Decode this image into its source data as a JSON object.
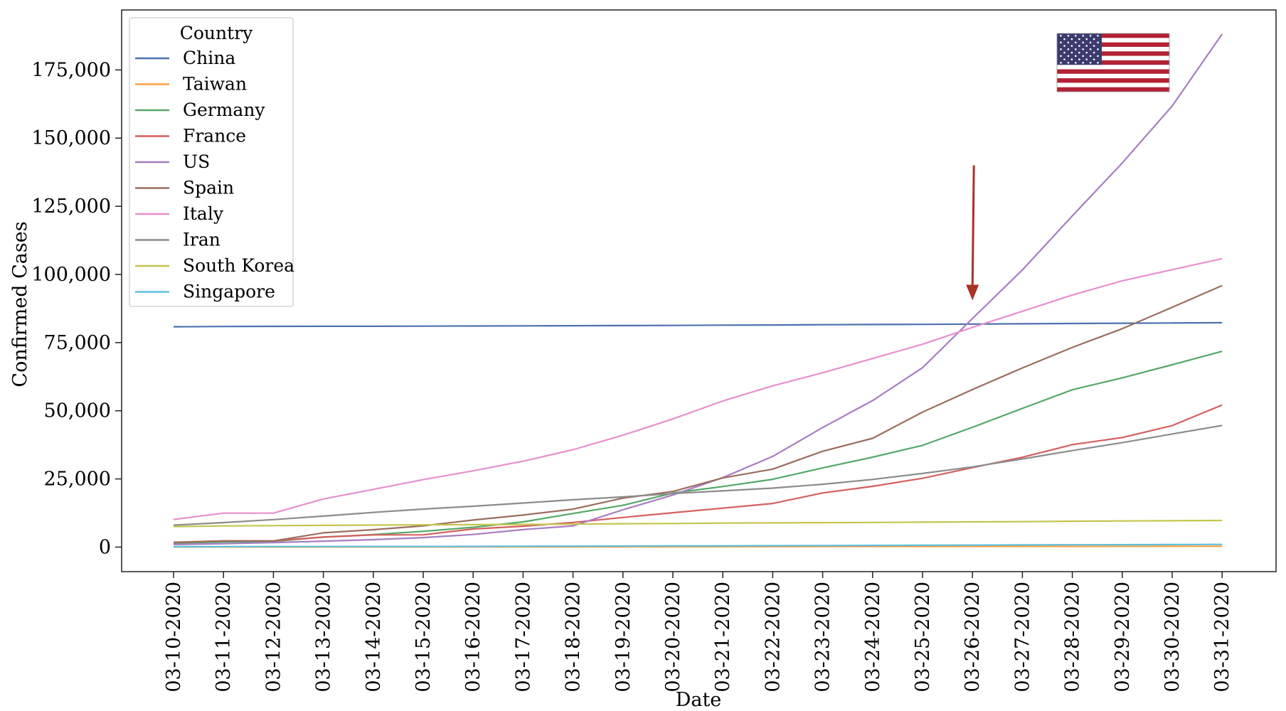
{
  "chart_data": {
    "type": "line",
    "title": "",
    "xlabel": "Date",
    "ylabel": "Confirmed Cases",
    "ylim": [
      -9000,
      197000
    ],
    "yticks": [
      0,
      25000,
      50000,
      75000,
      100000,
      125000,
      150000,
      175000
    ],
    "ytick_labels": [
      "0",
      "25,000",
      "50,000",
      "75,000",
      "100,000",
      "125,000",
      "150,000",
      "175,000"
    ],
    "grid": false,
    "legend": {
      "title": "Country",
      "placement": "top-left"
    },
    "x": [
      "03-10-2020",
      "03-11-2020",
      "03-12-2020",
      "03-13-2020",
      "03-14-2020",
      "03-15-2020",
      "03-16-2020",
      "03-17-2020",
      "03-18-2020",
      "03-19-2020",
      "03-20-2020",
      "03-21-2020",
      "03-22-2020",
      "03-23-2020",
      "03-24-2020",
      "03-25-2020",
      "03-26-2020",
      "03-27-2020",
      "03-28-2020",
      "03-29-2020",
      "03-30-2020",
      "03-31-2020"
    ],
    "series": [
      {
        "name": "China",
        "color": "#4c72b0",
        "values": [
          80800,
          80900,
          80950,
          80980,
          81000,
          81050,
          81100,
          81150,
          81200,
          81250,
          81300,
          81400,
          81450,
          81550,
          81650,
          81700,
          81800,
          81900,
          82000,
          82100,
          82200,
          82300
        ]
      },
      {
        "name": "Taiwan",
        "color": "#ff9f40",
        "values": [
          47,
          48,
          49,
          50,
          53,
          59,
          67,
          77,
          100,
          108,
          135,
          153,
          169,
          195,
          215,
          235,
          252,
          267,
          283,
          298,
          306,
          322
        ]
      },
      {
        "name": "Germany",
        "color": "#55a868",
        "values": [
          1457,
          1908,
          2078,
          3675,
          4585,
          5795,
          7272,
          9257,
          12327,
          15320,
          19848,
          22213,
          24873,
          29056,
          32986,
          37323,
          43938,
          50871,
          57695,
          62095,
          66885,
          71808
        ]
      },
      {
        "name": "France",
        "color": "#d65f5f",
        "values": [
          1784,
          2284,
          2281,
          3661,
          4469,
          4499,
          6633,
          7652,
          9043,
          10871,
          12612,
          14282,
          16018,
          19856,
          22304,
          25233,
          29155,
          32964,
          37575,
          40174,
          44550,
          52128
        ]
      },
      {
        "name": "US",
        "color": "#a77dc2",
        "values": [
          959,
          1281,
          1663,
          2179,
          2726,
          3499,
          4632,
          6421,
          7786,
          13680,
          19101,
          25493,
          33276,
          43847,
          53740,
          65778,
          83836,
          101657,
          121478,
          140886,
          161807,
          188172
        ]
      },
      {
        "name": "Spain",
        "color": "#9b6e5e",
        "values": [
          1695,
          2277,
          2277,
          5232,
          6391,
          7798,
          9942,
          11748,
          13910,
          17963,
          20410,
          25374,
          28603,
          35136,
          39885,
          49515,
          57786,
          65719,
          73235,
          80110,
          87956,
          95923
        ]
      },
      {
        "name": "Italy",
        "color": "#e88fd0",
        "values": [
          10149,
          12462,
          12462,
          17660,
          21157,
          24747,
          27980,
          31506,
          35713,
          41035,
          47021,
          53578,
          59138,
          63927,
          69176,
          74386,
          80589,
          86498,
          92472,
          97689,
          101739,
          105792
        ]
      },
      {
        "name": "Iran",
        "color": "#8c8c8c",
        "values": [
          8042,
          9000,
          10075,
          11364,
          12729,
          13938,
          14991,
          16169,
          17361,
          18407,
          19644,
          20610,
          21638,
          23049,
          24811,
          27017,
          29406,
          32332,
          35408,
          38309,
          41495,
          44605
        ]
      },
      {
        "name": "South Korea",
        "color": "#c4c54c",
        "values": [
          7513,
          7755,
          7869,
          7979,
          8086,
          8162,
          8236,
          8320,
          8413,
          8565,
          8652,
          8799,
          8897,
          8961,
          9037,
          9137,
          9241,
          9332,
          9478,
          9583,
          9661,
          9786
        ]
      },
      {
        "name": "Singapore",
        "color": "#5bc0de",
        "values": [
          160,
          178,
          200,
          212,
          226,
          243,
          266,
          313,
          345,
          385,
          432,
          455,
          509,
          558,
          631,
          683,
          732,
          802,
          844,
          879,
          926,
          1000
        ]
      }
    ],
    "annotations": [
      {
        "type": "arrow",
        "color": "#a93226",
        "x": "03-26-2020",
        "y_from": 140000,
        "y_to": 91000
      },
      {
        "type": "flag-image",
        "name": "us-flag-icon",
        "placement": "top-right"
      }
    ]
  }
}
